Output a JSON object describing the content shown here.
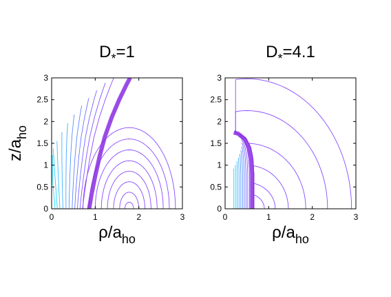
{
  "chart_data": [
    {
      "type": "contour",
      "title": "D*=1",
      "title_base": "D",
      "title_sub": "*",
      "title_value": "=1",
      "xlabel": "ρ/a_ho",
      "xlabel_main": "ρ/a",
      "xlabel_sub": "ho",
      "ylabel": "z/a_ho",
      "ylabel_main": "z/a",
      "ylabel_sub": "ho",
      "xlim": [
        0,
        3
      ],
      "ylim": [
        0,
        3
      ],
      "xticks": [
        "0",
        "1",
        "2",
        "3"
      ],
      "yticks": [
        "0",
        "0.5",
        "1",
        "1.5",
        "2",
        "2.5",
        "3"
      ],
      "grid": false,
      "colormap": [
        "#00ffff",
        "#9b30ff"
      ],
      "highlight_color": "#8a2be2",
      "node_line": [
        [
          0.86,
          0
        ],
        [
          0.92,
          0.35
        ],
        [
          1.0,
          0.75
        ],
        [
          1.1,
          1.2
        ],
        [
          1.22,
          1.65
        ],
        [
          1.38,
          2.1
        ],
        [
          1.55,
          2.5
        ],
        [
          1.72,
          2.85
        ],
        [
          1.8,
          3.0
        ]
      ],
      "inner_levels": [
        0.08,
        0.13,
        0.19,
        0.26,
        0.33,
        0.4,
        0.47,
        0.53,
        0.59,
        0.65,
        0.71
      ],
      "outer_contours": [
        {
          "r": 0.1,
          "zmax": 0.15
        },
        {
          "r": 0.22,
          "zmax": 0.38
        },
        {
          "r": 0.36,
          "zmax": 0.62
        },
        {
          "r": 0.5,
          "zmax": 0.86
        },
        {
          "r": 0.64,
          "zmax": 1.1
        },
        {
          "r": 0.78,
          "zmax": 1.35
        },
        {
          "r": 0.92,
          "zmax": 1.6
        },
        {
          "r": 1.06,
          "zmax": 1.86
        }
      ],
      "outer_center": 1.78
    },
    {
      "type": "contour",
      "title": "D*=4.1",
      "title_base": "D",
      "title_sub": "*",
      "title_value": "=4.1",
      "xlabel": "ρ/a_ho",
      "xlabel_main": "ρ/a",
      "xlabel_sub": "ho",
      "ylabel": "",
      "xlim": [
        0,
        3
      ],
      "ylim": [
        0,
        3
      ],
      "xticks": [
        "0",
        "1",
        "2",
        "3"
      ],
      "yticks": [
        "0",
        "0.5",
        "1",
        "1.5",
        "2",
        "2.5",
        "3"
      ],
      "grid": false,
      "colormap": [
        "#00ffff",
        "#9b30ff"
      ],
      "highlight_color": "#8a2be2",
      "node_line": [
        [
          0.62,
          0
        ],
        [
          0.62,
          0.35
        ],
        [
          0.62,
          0.8
        ],
        [
          0.6,
          1.15
        ],
        [
          0.55,
          1.4
        ],
        [
          0.45,
          1.6
        ],
        [
          0.3,
          1.72
        ],
        [
          0.2,
          1.75
        ]
      ],
      "inner_levels": [
        0.2,
        0.24,
        0.28,
        0.32,
        0.36,
        0.4,
        0.44,
        0.48,
        0.52,
        0.56
      ],
      "outer_contours": [
        {
          "r": 0.4,
          "zmax": 0.35
        },
        {
          "r": 0.65,
          "zmax": 0.6
        },
        {
          "r": 0.95,
          "zmax": 1.0
        },
        {
          "r": 1.35,
          "zmax": 1.5
        },
        {
          "r": 1.85,
          "zmax": 2.25
        },
        {
          "r": 2.4,
          "zmax": 2.98
        }
      ],
      "outer_center": 0.5
    }
  ]
}
